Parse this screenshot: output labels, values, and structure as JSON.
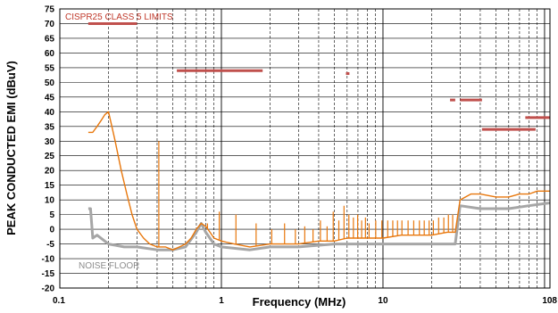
{
  "chart_data": {
    "type": "line",
    "xlabel": "Frequency (MHz)",
    "ylabel": "PEAK CONDUCTED EMI (dBuV)",
    "xscale": "log",
    "xlim": [
      0.1,
      108
    ],
    "ylim": [
      -20,
      75
    ],
    "grid": true,
    "x_ticks": [
      {
        "value": 0.1,
        "label": "0.1"
      },
      {
        "value": 1,
        "label": "1"
      },
      {
        "value": 10,
        "label": "10"
      },
      {
        "value": 108,
        "label": "108"
      }
    ],
    "y_ticks": [
      -20,
      -15,
      -10,
      -5,
      0,
      5,
      10,
      15,
      20,
      25,
      30,
      35,
      40,
      45,
      50,
      55,
      60,
      65,
      70,
      75
    ],
    "annotations": [
      {
        "text": "CISPR25 CLASS 5 LIMITS",
        "color": "#c0392b"
      },
      {
        "text": "NOISE FLOOR",
        "color": "#8c8c8c"
      }
    ],
    "series": [
      {
        "color": "#c0504d",
        "kind": "limit",
        "segments": [
          {
            "x": [
              0.15,
              0.3
            ],
            "y": [
              70,
              70
            ]
          },
          {
            "x": [
              0.53,
              1.8
            ],
            "y": [
              54,
              54
            ]
          },
          {
            "x": [
              5.9,
              6.2
            ],
            "y": [
              53,
              53
            ]
          },
          {
            "x": [
              26,
              28
            ],
            "y": [
              44,
              44
            ]
          },
          {
            "x": [
              30,
              41
            ],
            "y": [
              44,
              44
            ]
          },
          {
            "x": [
              41,
              88
            ],
            "y": [
              34,
              34
            ]
          },
          {
            "x": [
              76,
              108
            ],
            "y": [
              38,
              38
            ]
          }
        ]
      },
      {
        "color": "#e8770c",
        "kind": "measurement",
        "x": [
          0.15,
          0.16,
          0.17,
          0.18,
          0.19,
          0.2,
          0.21,
          0.22,
          0.24,
          0.26,
          0.28,
          0.3,
          0.33,
          0.36,
          0.4,
          0.45,
          0.5,
          0.55,
          0.6,
          0.65,
          0.7,
          0.75,
          0.8,
          0.85,
          0.9,
          1,
          1.2,
          1.5,
          2,
          2.5,
          3,
          4,
          5,
          6,
          8,
          10,
          13,
          16,
          20,
          25,
          28,
          30,
          35,
          40,
          50,
          60,
          70,
          80,
          90,
          100,
          108
        ],
        "y": [
          33,
          33,
          35,
          37,
          39,
          40,
          35,
          30,
          20,
          12,
          5,
          0,
          -3,
          -5,
          -6,
          -6,
          -7,
          -6,
          -5,
          -3,
          0,
          2,
          1,
          -1,
          -3,
          -4,
          -5,
          -6,
          -5,
          -5,
          -5,
          -4,
          -4,
          -3,
          -3,
          -3,
          -2,
          -2,
          -2,
          -1,
          -1,
          10,
          12,
          12,
          11,
          11,
          12,
          12,
          13,
          13,
          13
        ]
      },
      {
        "color": "#a6a6a6",
        "kind": "noise-floor",
        "x": [
          0.15,
          0.155,
          0.16,
          0.17,
          0.2,
          0.25,
          0.3,
          0.4,
          0.5,
          0.6,
          0.7,
          0.75,
          0.8,
          0.9,
          1,
          1.5,
          2,
          3,
          5,
          10,
          20,
          28,
          30,
          40,
          60,
          80,
          108
        ],
        "y": [
          7,
          7,
          -3,
          -2,
          -5,
          -6,
          -6,
          -7,
          -7,
          -6,
          -1,
          2,
          -1,
          -5,
          -6,
          -7,
          -6,
          -6,
          -5,
          -5,
          -5,
          -5,
          8,
          7,
          7,
          8,
          9
        ]
      }
    ],
    "spikes": [
      {
        "x": 0.41,
        "y": 30
      },
      {
        "x": 0.82,
        "y": 2
      },
      {
        "x": 0.97,
        "y": 6
      },
      {
        "x": 1.23,
        "y": 5
      },
      {
        "x": 1.64,
        "y": 2
      },
      {
        "x": 2.05,
        "y": 0
      },
      {
        "x": 2.46,
        "y": 2
      },
      {
        "x": 2.87,
        "y": 0
      },
      {
        "x": 3.28,
        "y": 1
      },
      {
        "x": 3.69,
        "y": 0
      },
      {
        "x": 4.1,
        "y": 3
      },
      {
        "x": 4.51,
        "y": 1
      },
      {
        "x": 4.92,
        "y": 6
      },
      {
        "x": 5.33,
        "y": 3
      },
      {
        "x": 5.74,
        "y": 8
      },
      {
        "x": 6.15,
        "y": 5
      },
      {
        "x": 6.56,
        "y": 4
      },
      {
        "x": 6.97,
        "y": 5
      },
      {
        "x": 7.38,
        "y": 3
      },
      {
        "x": 7.79,
        "y": 4
      },
      {
        "x": 8.2,
        "y": 2
      },
      {
        "x": 9.02,
        "y": 3
      },
      {
        "x": 9.84,
        "y": 3
      },
      {
        "x": 10.7,
        "y": 3
      },
      {
        "x": 11.5,
        "y": 3
      },
      {
        "x": 12.3,
        "y": 3
      },
      {
        "x": 13.1,
        "y": 3
      },
      {
        "x": 14.3,
        "y": 3
      },
      {
        "x": 15.5,
        "y": 3
      },
      {
        "x": 16.8,
        "y": 3
      },
      {
        "x": 18,
        "y": 3
      },
      {
        "x": 19.3,
        "y": 3
      },
      {
        "x": 20.5,
        "y": 3
      },
      {
        "x": 22.1,
        "y": 4
      },
      {
        "x": 23.8,
        "y": 4
      },
      {
        "x": 25.4,
        "y": 5
      },
      {
        "x": 27,
        "y": 5
      }
    ]
  }
}
